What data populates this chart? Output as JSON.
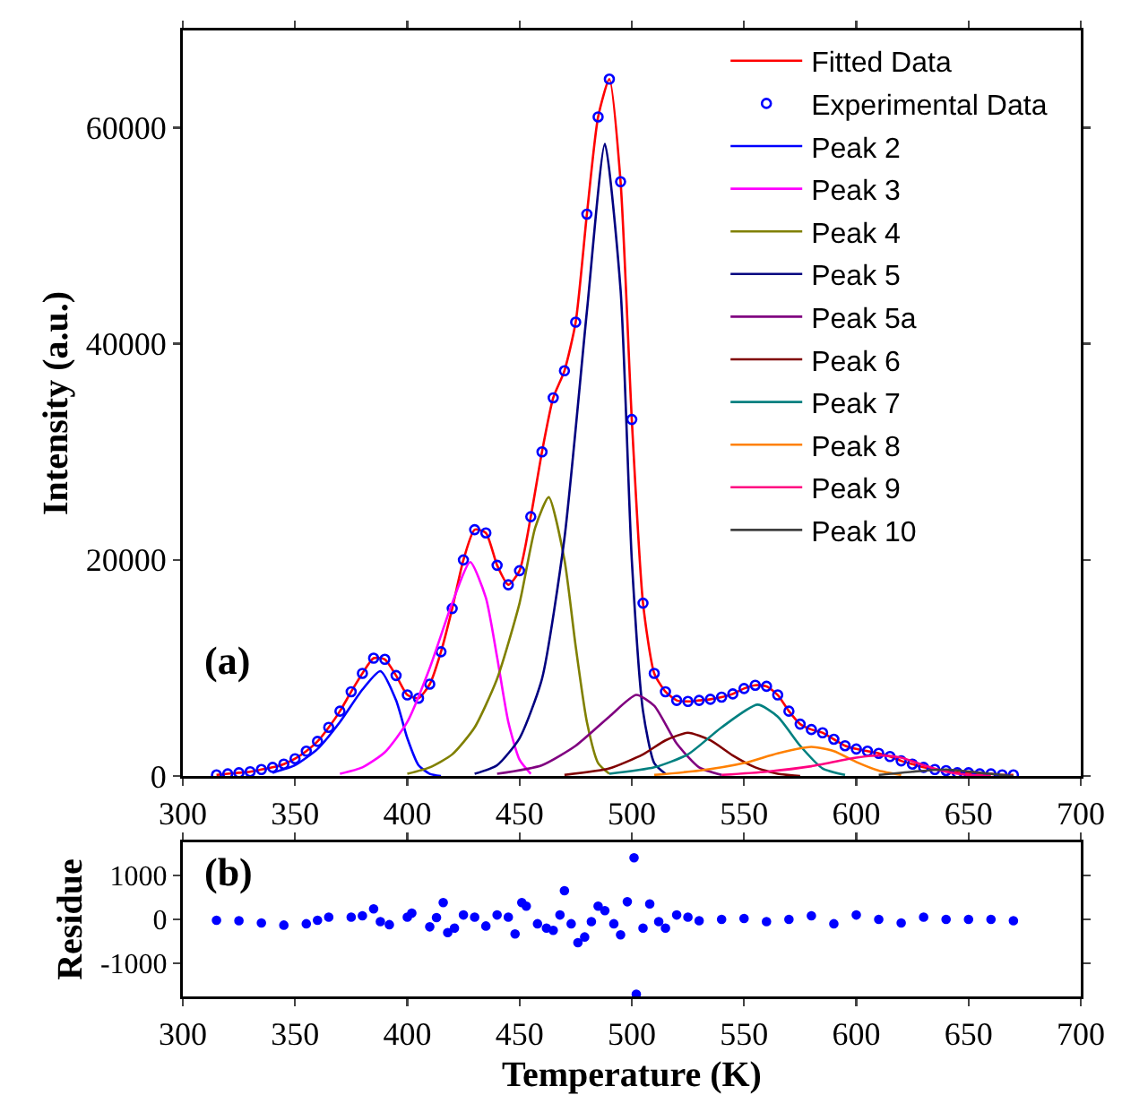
{
  "chart_data": [
    {
      "type": "line",
      "ylabel": "Intensity (a.u.)",
      "xlim": [
        300,
        700
      ],
      "xticks": [
        300,
        350,
        400,
        450,
        500,
        550,
        600,
        650,
        700
      ],
      "ylim": [
        0,
        69000
      ],
      "yticks": [
        0,
        20000,
        40000,
        60000
      ],
      "grid": false,
      "legend": "top right",
      "annotations": [
        "(a)"
      ],
      "series": [
        {
          "name": "Fitted Data",
          "color": "#ff0000",
          "x": [
            315,
            320,
            325,
            330,
            335,
            340,
            345,
            350,
            355,
            360,
            365,
            370,
            375,
            380,
            385,
            390,
            395,
            400,
            405,
            410,
            415,
            420,
            425,
            430,
            435,
            440,
            445,
            450,
            455,
            460,
            465,
            470,
            475,
            480,
            485,
            490,
            495,
            500,
            505,
            510,
            515,
            520,
            525,
            530,
            535,
            540,
            545,
            550,
            555,
            560,
            565,
            570,
            575,
            580,
            585,
            590,
            595,
            600,
            605,
            610,
            615,
            620,
            625,
            630,
            635,
            640,
            645,
            650,
            655,
            660,
            665,
            670
          ],
          "values": [
            100,
            200,
            300,
            400,
            600,
            800,
            1100,
            1600,
            2300,
            3200,
            4500,
            6000,
            7800,
            9500,
            10900,
            10800,
            9300,
            7500,
            7200,
            8500,
            11500,
            15500,
            20000,
            22800,
            22500,
            19500,
            17700,
            19000,
            24000,
            30000,
            35000,
            37500,
            42000,
            52000,
            61000,
            64500,
            55000,
            33000,
            16000,
            9500,
            7800,
            7000,
            6900,
            7000,
            7100,
            7300,
            7600,
            8100,
            8400,
            8300,
            7500,
            6000,
            4800,
            4300,
            4000,
            3400,
            2800,
            2500,
            2300,
            2100,
            1800,
            1400,
            1100,
            800,
            600,
            500,
            300,
            300,
            200,
            200,
            100,
            100
          ]
        },
        {
          "name": "Experimental Data",
          "type": "scatter",
          "marker": "circle",
          "color": "#0000ff",
          "x": [
            315,
            320,
            325,
            330,
            335,
            340,
            345,
            350,
            355,
            360,
            365,
            370,
            375,
            380,
            385,
            390,
            395,
            400,
            405,
            410,
            415,
            420,
            425,
            430,
            435,
            440,
            445,
            450,
            455,
            460,
            465,
            470,
            475,
            480,
            485,
            490,
            495,
            500,
            505,
            510,
            515,
            520,
            525,
            530,
            535,
            540,
            545,
            550,
            555,
            560,
            565,
            570,
            575,
            580,
            585,
            590,
            595,
            600,
            605,
            610,
            615,
            620,
            625,
            630,
            635,
            640,
            645,
            650,
            655,
            660,
            665,
            670
          ],
          "values": [
            100,
            200,
            300,
            400,
            600,
            800,
            1100,
            1600,
            2300,
            3200,
            4500,
            6000,
            7800,
            9500,
            10900,
            10800,
            9300,
            7500,
            7200,
            8500,
            11500,
            15500,
            20000,
            22800,
            22500,
            19500,
            17700,
            19000,
            24000,
            30000,
            35000,
            37500,
            42000,
            52000,
            61000,
            64500,
            55000,
            33000,
            16000,
            9500,
            7800,
            7000,
            6900,
            7000,
            7100,
            7300,
            7600,
            8100,
            8400,
            8300,
            7500,
            6000,
            4800,
            4300,
            4000,
            3400,
            2800,
            2500,
            2300,
            2100,
            1800,
            1400,
            1100,
            800,
            600,
            500,
            300,
            300,
            200,
            200,
            100,
            100
          ]
        },
        {
          "name": "Peak 2",
          "color": "#0000ff",
          "x": [
            340,
            350,
            360,
            370,
            380,
            388,
            395,
            400,
            405,
            410,
            415
          ],
          "values": [
            300,
            1000,
            2500,
            5000,
            8000,
            9700,
            7000,
            3500,
            1000,
            200,
            0
          ]
        },
        {
          "name": "Peak 3",
          "color": "#ff00ff",
          "x": [
            370,
            380,
            390,
            400,
            410,
            420,
            428,
            435,
            440,
            445,
            450,
            455
          ],
          "values": [
            200,
            800,
            2200,
            5000,
            10000,
            16000,
            19800,
            16500,
            11000,
            5000,
            1500,
            200
          ]
        },
        {
          "name": "Peak 4",
          "color": "#808000",
          "x": [
            400,
            410,
            420,
            430,
            440,
            450,
            457,
            463,
            470,
            475,
            480,
            485,
            490
          ],
          "values": [
            200,
            800,
            2000,
            4500,
            9000,
            16000,
            23000,
            25800,
            20000,
            12000,
            5000,
            1200,
            200
          ]
        },
        {
          "name": "Peak 5",
          "color": "#000080",
          "x": [
            430,
            440,
            450,
            460,
            470,
            480,
            488,
            495,
            500,
            505,
            510,
            515
          ],
          "values": [
            200,
            1000,
            3500,
            9000,
            22000,
            43000,
            58500,
            45000,
            20000,
            6000,
            1200,
            200
          ]
        },
        {
          "name": "Peak 5a",
          "color": "#800080",
          "x": [
            440,
            460,
            475,
            490,
            502,
            510,
            520,
            530,
            540
          ],
          "values": [
            200,
            1000,
            2800,
            5500,
            7500,
            6500,
            3000,
            800,
            100
          ]
        },
        {
          "name": "Peak 6",
          "color": "#800000",
          "x": [
            470,
            490,
            505,
            515,
            525,
            535,
            545,
            555,
            565,
            575
          ],
          "values": [
            100,
            700,
            2000,
            3300,
            4000,
            3300,
            1900,
            800,
            200,
            0
          ]
        },
        {
          "name": "Peak 7",
          "color": "#008080",
          "x": [
            490,
            510,
            525,
            540,
            556,
            565,
            575,
            585,
            595
          ],
          "values": [
            200,
            800,
            2000,
            4500,
            6600,
            5500,
            2800,
            700,
            100
          ]
        },
        {
          "name": "Peak 8",
          "color": "#ff8000",
          "x": [
            510,
            530,
            550,
            565,
            580,
            590,
            600,
            610,
            620
          ],
          "values": [
            100,
            500,
            1200,
            2100,
            2700,
            2300,
            1300,
            500,
            100
          ]
        },
        {
          "name": "Peak 9",
          "color": "#ff0080",
          "x": [
            540,
            560,
            580,
            600,
            612,
            620,
            630,
            640,
            650,
            660
          ],
          "values": [
            100,
            400,
            900,
            1700,
            1900,
            1700,
            1000,
            400,
            100,
            0
          ]
        },
        {
          "name": "Peak 10",
          "color": "#404040",
          "x": [
            610,
            625,
            640,
            655,
            670
          ],
          "values": [
            100,
            400,
            600,
            300,
            0
          ]
        }
      ]
    },
    {
      "type": "scatter",
      "xlabel": "Temperature (K)",
      "ylabel": "Residue",
      "xlim": [
        300,
        700
      ],
      "xticks": [
        300,
        350,
        400,
        450,
        500,
        550,
        600,
        650,
        700
      ],
      "ylim": [
        -1750,
        1750
      ],
      "yticks": [
        -1000,
        0,
        1000
      ],
      "grid": false,
      "legend": false,
      "marker": "circle",
      "annotations": [
        "(b)"
      ],
      "series": [
        {
          "color": "#0000ff",
          "x": [
            315,
            325,
            335,
            345,
            355,
            360,
            365,
            375,
            380,
            385,
            388,
            392,
            400,
            402,
            410,
            413,
            416,
            418,
            421,
            425,
            430,
            435,
            440,
            445,
            448,
            451,
            453,
            458,
            462,
            465,
            468,
            470,
            473,
            476,
            479,
            482,
            485,
            488,
            492,
            495,
            498,
            501,
            502,
            505,
            508,
            512,
            515,
            520,
            525,
            530,
            540,
            550,
            560,
            570,
            580,
            590,
            600,
            610,
            620,
            630,
            640,
            650,
            660,
            670
          ],
          "values": [
            -20,
            -30,
            -80,
            -130,
            -100,
            -20,
            50,
            50,
            80,
            240,
            -50,
            -120,
            50,
            140,
            -170,
            40,
            380,
            -300,
            -200,
            100,
            50,
            -150,
            100,
            50,
            -330,
            380,
            300,
            -100,
            -200,
            -250,
            100,
            650,
            -100,
            -530,
            -400,
            -50,
            300,
            200,
            -100,
            -350,
            400,
            1400,
            -1700,
            -200,
            350,
            -50,
            -200,
            100,
            50,
            -30,
            0,
            20,
            -50,
            0,
            80,
            -100,
            100,
            0,
            -80,
            50,
            0,
            0,
            0,
            -30
          ]
        }
      ]
    }
  ]
}
